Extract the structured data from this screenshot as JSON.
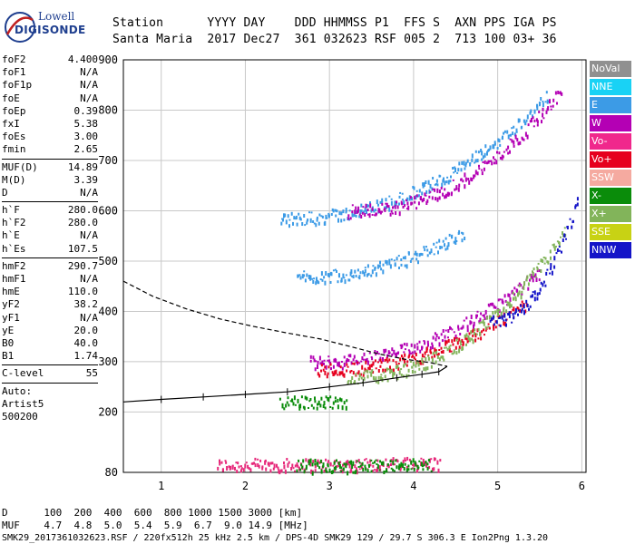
{
  "logo": {
    "line1": "Lowell",
    "line2": "DIGISONDE"
  },
  "header": {
    "line1": "Station      YYYY DAY    DDD HHMMSS P1  FFS S  AXN PPS IGA PS",
    "line2": "Santa Maria  2017 Dec27  361 032623 RSF 005 2  713 100 03+ 36"
  },
  "params": [
    [
      {
        "k": "foF2",
        "v": "4.400"
      },
      {
        "k": "foF1",
        "v": "N/A"
      },
      {
        "k": "foF1p",
        "v": "N/A"
      },
      {
        "k": "foE",
        "v": "N/A"
      },
      {
        "k": "foEp",
        "v": "0.39"
      },
      {
        "k": "fxI",
        "v": "5.38"
      },
      {
        "k": "foEs",
        "v": "3.00"
      },
      {
        "k": "fmin",
        "v": "2.65"
      }
    ],
    [
      {
        "k": "MUF(D)",
        "v": "14.89"
      },
      {
        "k": "M(D)",
        "v": "3.39"
      },
      {
        "k": "D",
        "v": "N/A"
      }
    ],
    [
      {
        "k": "h`F",
        "v": "280.0"
      },
      {
        "k": "h`F2",
        "v": "280.0"
      },
      {
        "k": "h`E",
        "v": "N/A"
      },
      {
        "k": "h`Es",
        "v": "107.5"
      }
    ],
    [
      {
        "k": "hmF2",
        "v": "290.7"
      },
      {
        "k": "hmF1",
        "v": "N/A"
      },
      {
        "k": "hmE",
        "v": "110.0"
      },
      {
        "k": "yF2",
        "v": "38.2"
      },
      {
        "k": "yF1",
        "v": "N/A"
      },
      {
        "k": "yE",
        "v": "20.0"
      },
      {
        "k": "B0",
        "v": "40.0"
      },
      {
        "k": "B1",
        "v": "1.74"
      }
    ],
    [
      {
        "k": "C-level",
        "v": "55"
      }
    ]
  ],
  "auto": {
    "label": "Auto:",
    "software": "Artist5",
    "code": "500200"
  },
  "legend": [
    {
      "name": "NoVal",
      "color": "#909090"
    },
    {
      "name": "NNE",
      "color": "#19d2f5"
    },
    {
      "name": "E",
      "color": "#3c9be6"
    },
    {
      "name": "W",
      "color": "#b400b4"
    },
    {
      "name": "Vo-",
      "color": "#f0288c"
    },
    {
      "name": "Vo+",
      "color": "#e6001e"
    },
    {
      "name": "SSW",
      "color": "#f5aaa0"
    },
    {
      "name": "X-",
      "color": "#0a8c0a"
    },
    {
      "name": "X+",
      "color": "#82b45a"
    },
    {
      "name": "SSE",
      "color": "#c8d214"
    },
    {
      "name": "NNW",
      "color": "#1414c8"
    }
  ],
  "footer": {
    "d_row": "D      100  200  400  600  800 1000 1500 3000 [km]",
    "muf_row": "MUF    4.7  4.8  5.0  5.4  5.9  6.7  9.0 14.9 [MHz]",
    "info": "SMK29_2017361032623.RSF / 220fx512h 25 kHz 2.5 km / DPS-4D SMK29 129 / 29.7 S 306.3 E Ion2Png 1.3.20"
  },
  "chart_data": {
    "type": "scatter",
    "x_ticks": [
      1,
      2,
      3,
      4,
      5,
      6
    ],
    "y_ticks": [
      80,
      200,
      300,
      400,
      500,
      600,
      700,
      800,
      900
    ],
    "xlim": [
      0.55,
      6.05
    ],
    "ylim": [
      80,
      900
    ],
    "grid": true,
    "legend_placement": "right",
    "traces": [
      {
        "name": "Es",
        "color": "#e6287a",
        "x0": 1.65,
        "x1": 4.3,
        "h0": 96,
        "h1": 100
      },
      {
        "name": "Es-green",
        "color": "#0a8c0a",
        "x0": 2.6,
        "x1": 4.2,
        "h0": 95,
        "h1": 97
      },
      {
        "name": "F2-o-W",
        "color": "#b400b4",
        "x0": 2.75,
        "x1": 5.5,
        "h0": 300,
        "h1": 480
      },
      {
        "name": "F2-o-Vo",
        "color": "#e6001e",
        "x0": 2.85,
        "x1": 5.35,
        "h0": 285,
        "h1": 420
      },
      {
        "name": "F2-x",
        "color": "#82b45a",
        "x0": 3.2,
        "x1": 5.8,
        "h0": 270,
        "h1": 560
      },
      {
        "name": "F2-NNW",
        "color": "#1414c8",
        "x0": 4.9,
        "x1": 5.95,
        "h0": 380,
        "h1": 620
      },
      {
        "name": "F2-2hop-E",
        "color": "#3c9be6",
        "x0": 2.4,
        "x1": 5.6,
        "h0": 585,
        "h1": 830
      },
      {
        "name": "F2-2hop-W",
        "color": "#b400b4",
        "x0": 3.2,
        "x1": 5.75,
        "h0": 600,
        "h1": 840
      },
      {
        "name": "F2-mid",
        "color": "#3c9be6",
        "x0": 2.6,
        "x1": 4.6,
        "h0": 470,
        "h1": 560
      },
      {
        "name": "E-low",
        "color": "#0a8c0a",
        "x0": 2.4,
        "x1": 3.2,
        "h0": 220,
        "h1": 225
      }
    ],
    "profile_curve": {
      "dashed": [
        [
          0.55,
          460
        ],
        [
          0.9,
          430
        ],
        [
          1.3,
          405
        ],
        [
          1.7,
          385
        ],
        [
          2.1,
          370
        ],
        [
          2.5,
          357
        ],
        [
          2.9,
          345
        ],
        [
          3.25,
          330
        ],
        [
          3.6,
          315
        ],
        [
          3.9,
          305
        ],
        [
          4.2,
          298
        ],
        [
          4.4,
          290.7
        ]
      ],
      "solid": [
        [
          4.4,
          290.7
        ],
        [
          4.3,
          280
        ],
        [
          4.1,
          275
        ],
        [
          3.8,
          268
        ],
        [
          3.4,
          258
        ],
        [
          3.0,
          250
        ],
        [
          2.5,
          240
        ],
        [
          2.0,
          235
        ],
        [
          1.5,
          230
        ],
        [
          1.0,
          225
        ],
        [
          0.55,
          220
        ]
      ]
    }
  }
}
